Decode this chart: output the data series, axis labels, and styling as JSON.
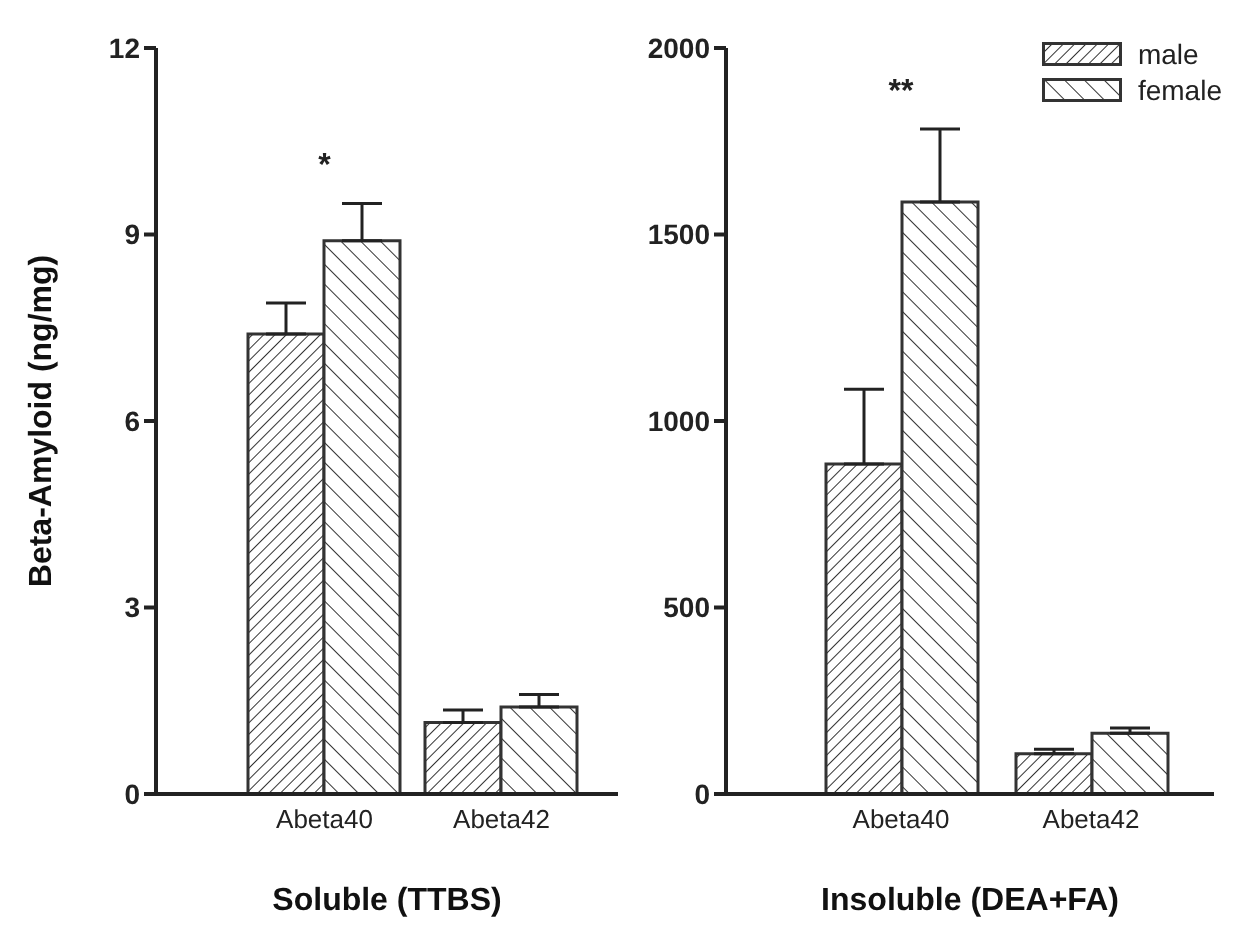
{
  "chart_data": [
    {
      "type": "bar",
      "xlabel": "Soluble (TTBS)",
      "ylabel": "Beta-Amyloid (ng/mg)",
      "categories": [
        "Abeta40",
        "Abeta42"
      ],
      "ylim": [
        0,
        12
      ],
      "yticks": [
        0,
        3,
        6,
        9,
        12
      ],
      "series": [
        {
          "color": "#333333",
          "values": [
            7.4,
            1.15
          ],
          "errors": [
            [
              7.4,
              7.9
            ],
            [
              1.15,
              1.35
            ]
          ]
        },
        {
          "color": "#333333",
          "values": [
            8.9,
            1.4
          ],
          "errors": [
            [
              8.9,
              9.5
            ],
            [
              1.4,
              1.6
            ]
          ]
        }
      ],
      "annotations": [
        "*"
      ]
    },
    {
      "type": "bar",
      "xlabel": "Insoluble (DEA+FA)",
      "categories": [
        "Abeta40",
        "Abeta42"
      ],
      "ylim": [
        0,
        2000
      ],
      "yticks": [
        0,
        500,
        1000,
        1500,
        2000
      ],
      "legend": "top right",
      "series": [
        {
          "name": "male",
          "color": "#333333",
          "values": [
            885,
            108
          ],
          "errors": [
            [
              885,
              1085
            ],
            [
              108,
              120
            ]
          ]
        },
        {
          "name": "female",
          "color": "#333333",
          "values": [
            1587,
            163
          ],
          "errors": [
            [
              1587,
              1783
            ],
            [
              163,
              177
            ]
          ]
        }
      ],
      "annotations": [
        "**"
      ]
    }
  ]
}
